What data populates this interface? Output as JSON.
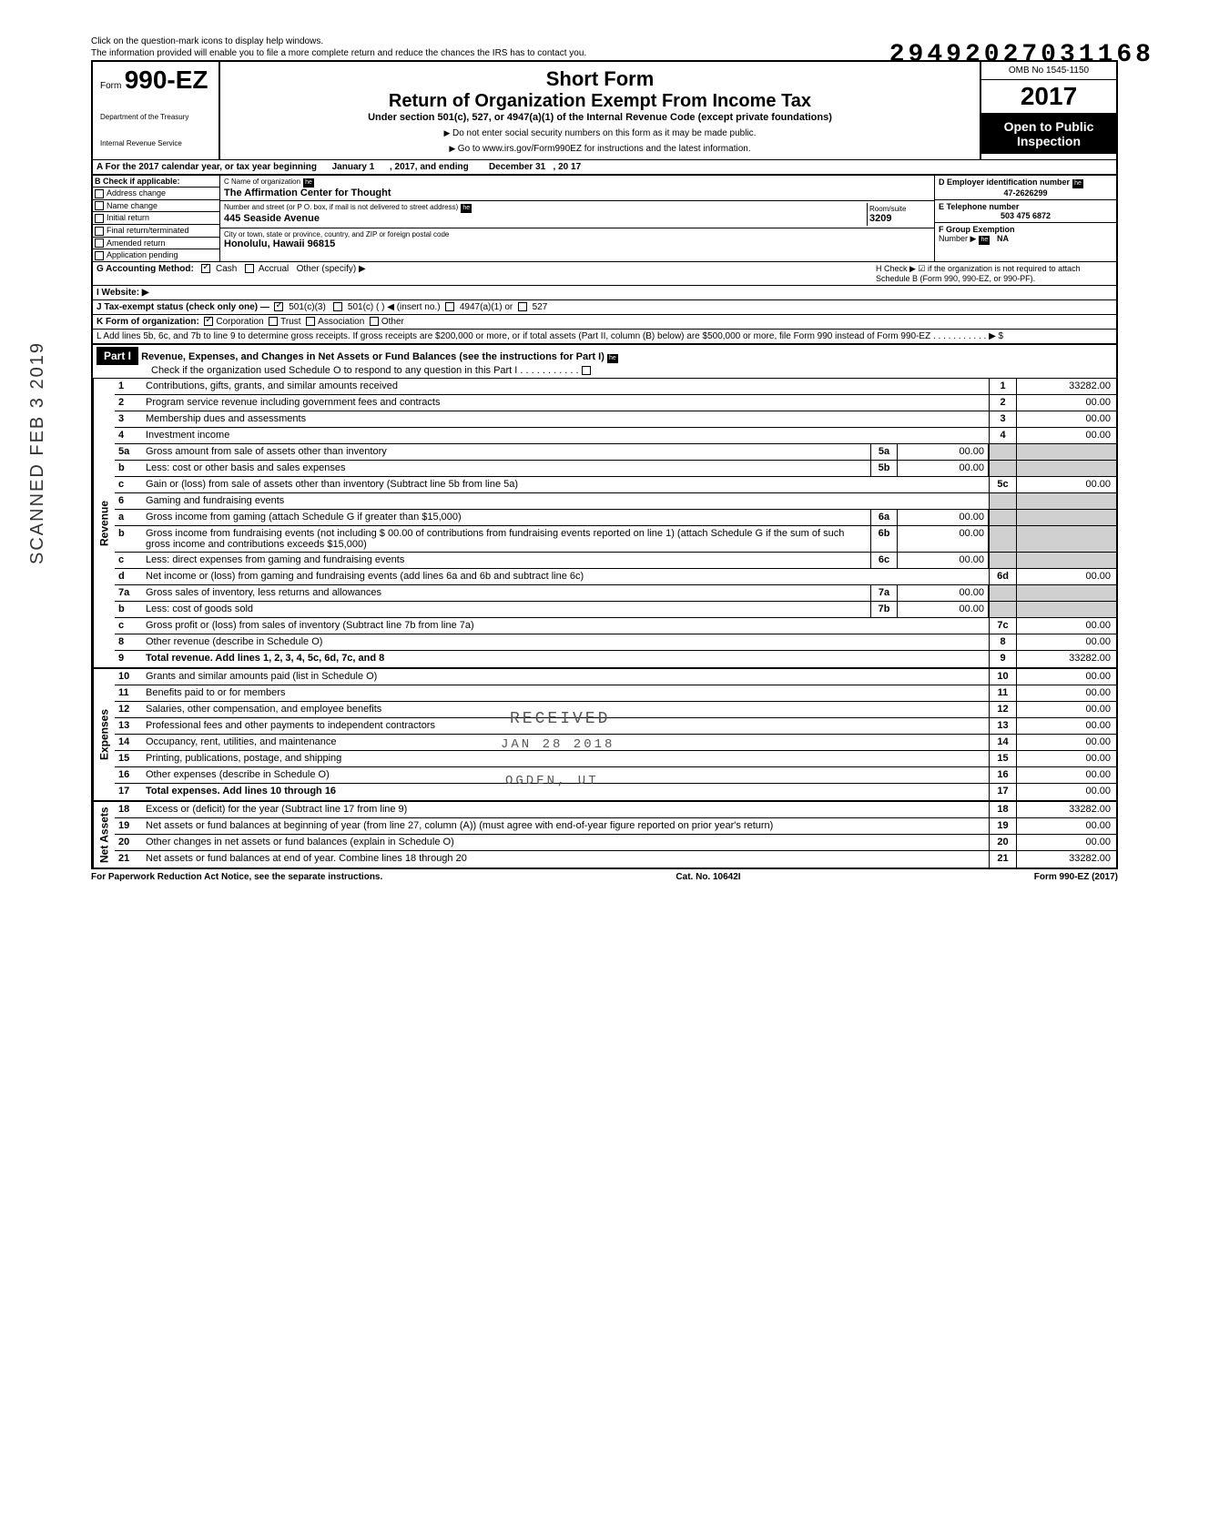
{
  "stamp_number": "29492027031168",
  "watermark": "SCANNED FEB 3 2019",
  "help_line1": "Click on the question-mark icons to display help windows.",
  "help_line2": "The information provided will enable you to file a more complete return and reduce the chances the IRS has to contact you.",
  "form": {
    "prefix": "Form",
    "number": "990-EZ",
    "dept1": "Department of the Treasury",
    "dept2": "Internal Revenue Service"
  },
  "title": {
    "short": "Short Form",
    "main": "Return of Organization Exempt From Income Tax",
    "sub": "Under section 501(c), 527, or 4947(a)(1) of the Internal Revenue Code (except private foundations)",
    "warn": "Do not enter social security numbers on this form as it may be made public.",
    "goto": "Go to www.irs.gov/Form990EZ for instructions and the latest information."
  },
  "right": {
    "omb": "OMB No 1545-1150",
    "year_prefix": "20",
    "year_bold": "17",
    "open1": "Open to Public",
    "open2": "Inspection"
  },
  "rowA": {
    "prefix": "A For the 2017 calendar year, or tax year beginning",
    "begin": "January 1",
    "mid": ", 2017, and ending",
    "end": "December 31",
    "year_suffix": ", 20   17"
  },
  "colB": {
    "header": "B  Check if applicable:",
    "items": [
      "Address change",
      "Name change",
      "Initial return",
      "Final return/terminated",
      "Amended return",
      "Application pending"
    ]
  },
  "colC": {
    "name_label": "C  Name of organization",
    "name": "The Affirmation Center for Thought",
    "addr_label": "Number and street (or P O. box, if mail is not delivered to street address)",
    "addr": "445 Seaside Avenue",
    "room_label": "Room/suite",
    "room": "3209",
    "city_label": "City or town, state or province, country, and ZIP or foreign postal code",
    "city": "Honolulu, Hawaii 96815"
  },
  "colD": {
    "ein_label": "D Employer identification number",
    "ein": "47-2626299",
    "tel_label": "E  Telephone number",
    "tel": "503 475 6872",
    "group_label": "F  Group Exemption",
    "group_label2": "Number ▶",
    "group": "NA"
  },
  "rowG": "G  Accounting Method:",
  "rowG_cash": "Cash",
  "rowG_accrual": "Accrual",
  "rowG_other": "Other (specify) ▶",
  "rowH": "H  Check ▶ ☑ if the organization is not required to attach Schedule B (Form 990, 990-EZ, or 990-PF).",
  "rowI": "I   Website: ▶",
  "rowJ": "J  Tax-exempt status (check only one) —",
  "rowJ_opts": [
    "501(c)(3)",
    "501(c) (        ) ◀ (insert no.)",
    "4947(a)(1) or",
    "527"
  ],
  "rowK": "K  Form of organization:",
  "rowK_opts": [
    "Corporation",
    "Trust",
    "Association",
    "Other"
  ],
  "rowL": "L  Add lines 5b, 6c, and 7b to line 9 to determine gross receipts. If gross receipts are $200,000 or more, or if total assets (Part II, column (B) below) are $500,000 or more, file Form 990 instead of Form 990-EZ  .    .    .    .    .    .    .    .    .    .    .   ▶   $",
  "part1": {
    "label": "Part I",
    "title": "Revenue, Expenses, and Changes in Net Assets or Fund Balances (see the instructions for Part I)",
    "check": "Check if the organization used Schedule O to respond to any question in this Part I  .    .    .    .    .    .    .    .    .    .    ."
  },
  "sections": {
    "revenue": "Revenue",
    "expenses": "Expenses",
    "netassets": "Net Assets"
  },
  "lines": [
    {
      "n": "1",
      "t": "Contributions, gifts, grants, and similar amounts received",
      "en": "1",
      "ev": "33282.00"
    },
    {
      "n": "2",
      "t": "Program service revenue including government fees and contracts",
      "en": "2",
      "ev": "00.00"
    },
    {
      "n": "3",
      "t": "Membership dues and assessments",
      "en": "3",
      "ev": "00.00"
    },
    {
      "n": "4",
      "t": "Investment income",
      "en": "4",
      "ev": "00.00"
    },
    {
      "n": "5a",
      "t": "Gross amount from sale of assets other than inventory",
      "mn": "5a",
      "mv": "00.00"
    },
    {
      "n": "b",
      "t": "Less: cost or other basis and sales expenses",
      "mn": "5b",
      "mv": "00.00"
    },
    {
      "n": "c",
      "t": "Gain or (loss) from sale of assets other than inventory (Subtract line 5b from line 5a)",
      "en": "5c",
      "ev": "00.00"
    },
    {
      "n": "6",
      "t": "Gaming and fundraising events"
    },
    {
      "n": "a",
      "t": "Gross income from gaming (attach Schedule G if greater than $15,000)",
      "mn": "6a",
      "mv": "00.00"
    },
    {
      "n": "b",
      "t": "Gross income from fundraising events (not including  $              00.00 of contributions from fundraising events reported on line 1) (attach Schedule G if the sum of such gross income and contributions exceeds $15,000)",
      "mn": "6b",
      "mv": "00.00"
    },
    {
      "n": "c",
      "t": "Less: direct expenses from gaming and fundraising events",
      "mn": "6c",
      "mv": "00.00"
    },
    {
      "n": "d",
      "t": "Net income or (loss) from gaming and fundraising events (add lines 6a and 6b and subtract line 6c)",
      "en": "6d",
      "ev": "00.00"
    },
    {
      "n": "7a",
      "t": "Gross sales of inventory, less returns and allowances",
      "mn": "7a",
      "mv": "00.00"
    },
    {
      "n": "b",
      "t": "Less: cost of goods sold",
      "mn": "7b",
      "mv": "00.00"
    },
    {
      "n": "c",
      "t": "Gross profit or (loss) from sales of inventory (Subtract line 7b from line 7a)",
      "en": "7c",
      "ev": "00.00"
    },
    {
      "n": "8",
      "t": "Other revenue (describe in Schedule O)",
      "en": "8",
      "ev": "00.00"
    },
    {
      "n": "9",
      "t": "Total revenue. Add lines 1, 2, 3, 4, 5c, 6d, 7c, and 8",
      "bold": true,
      "en": "9",
      "ev": "33282.00"
    }
  ],
  "exp_lines": [
    {
      "n": "10",
      "t": "Grants and similar amounts paid (list in Schedule O)",
      "en": "10",
      "ev": "00.00"
    },
    {
      "n": "11",
      "t": "Benefits paid to or for members",
      "en": "11",
      "ev": "00.00"
    },
    {
      "n": "12",
      "t": "Salaries, other compensation, and employee benefits",
      "en": "12",
      "ev": "00.00"
    },
    {
      "n": "13",
      "t": "Professional fees and other payments to independent contractors",
      "en": "13",
      "ev": "00.00"
    },
    {
      "n": "14",
      "t": "Occupancy, rent, utilities, and maintenance",
      "en": "14",
      "ev": "00.00"
    },
    {
      "n": "15",
      "t": "Printing, publications, postage, and shipping",
      "en": "15",
      "ev": "00.00"
    },
    {
      "n": "16",
      "t": "Other expenses (describe in Schedule O)",
      "en": "16",
      "ev": "00.00"
    },
    {
      "n": "17",
      "t": "Total expenses. Add lines 10 through 16",
      "bold": true,
      "en": "17",
      "ev": "00.00"
    }
  ],
  "na_lines": [
    {
      "n": "18",
      "t": "Excess or (deficit) for the year (Subtract line 17 from line 9)",
      "en": "18",
      "ev": "33282.00"
    },
    {
      "n": "19",
      "t": "Net assets or fund balances at beginning of year (from line 27, column (A)) (must agree with end-of-year figure reported on prior year's return)",
      "en": "19",
      "ev": "00.00"
    },
    {
      "n": "20",
      "t": "Other changes in net assets or fund balances (explain in Schedule O)",
      "en": "20",
      "ev": "00.00"
    },
    {
      "n": "21",
      "t": "Net assets or fund balances at end of year. Combine lines 18 through 20",
      "en": "21",
      "ev": "33282.00"
    }
  ],
  "stamp_received": "RECEIVED",
  "stamp_date": "JAN 28 2018",
  "stamp_loc": "OGDEN, UT",
  "footer": {
    "left": "For Paperwork Reduction Act Notice, see the separate instructions.",
    "mid": "Cat. No. 10642I",
    "right": "Form 990-EZ (2017)"
  }
}
